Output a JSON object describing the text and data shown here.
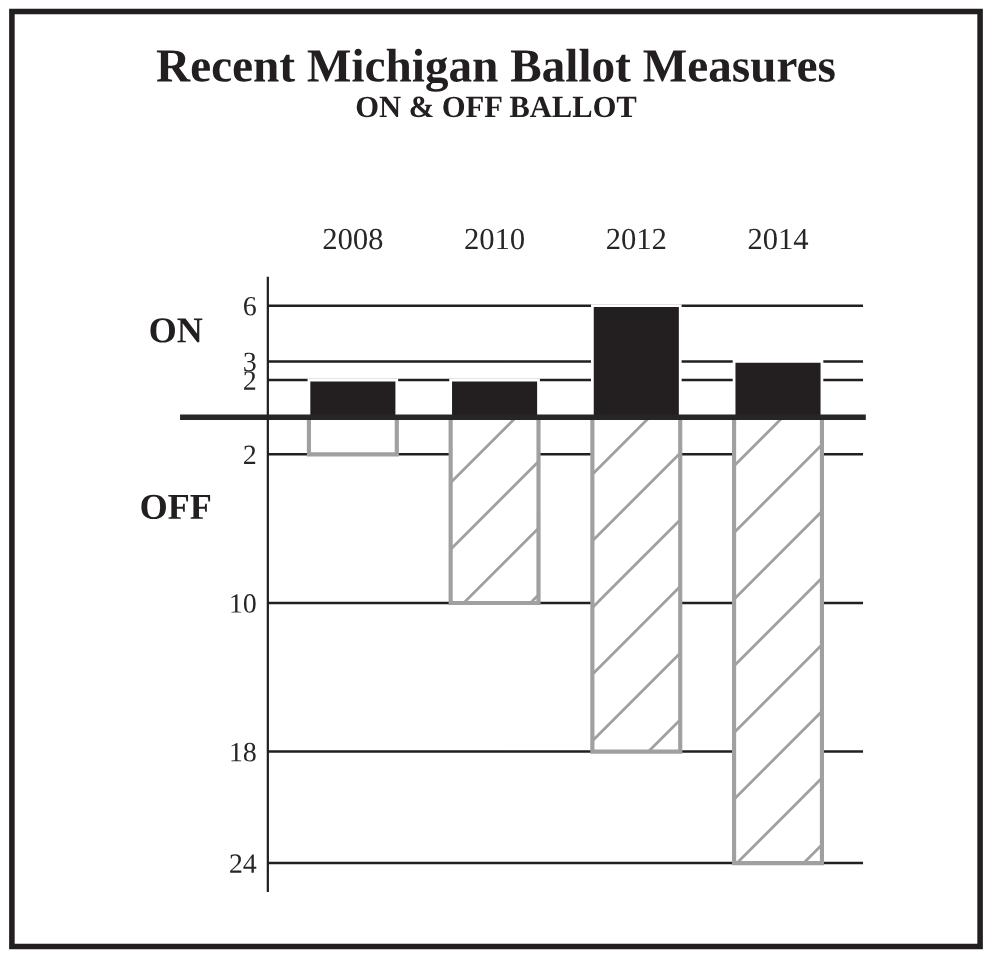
{
  "chart_data": {
    "type": "bar",
    "title": "Recent Michigan Ballot Measures",
    "subtitle": "ON & OFF BALLOT",
    "categories": [
      "2008",
      "2010",
      "2012",
      "2014"
    ],
    "series": [
      {
        "color": "#231f20",
        "values": [
          2,
          2,
          6,
          3
        ]
      },
      {
        "color": "#a0a0a0",
        "values": [
          -2,
          -10,
          -18,
          -24
        ]
      }
    ],
    "ylim": [
      -25.5,
      7.5
    ],
    "yticks": [
      {
        "value": 6,
        "label": "6"
      },
      {
        "value": 3,
        "label": "3"
      },
      {
        "value": 2,
        "label": "2"
      },
      {
        "value": -2,
        "label": "2"
      },
      {
        "value": -10,
        "label": "10"
      },
      {
        "value": -18,
        "label": "18"
      },
      {
        "value": -24,
        "label": "24"
      }
    ],
    "grid": "y",
    "stacked": true,
    "annotations": [
      "ON",
      "OFF"
    ]
  }
}
